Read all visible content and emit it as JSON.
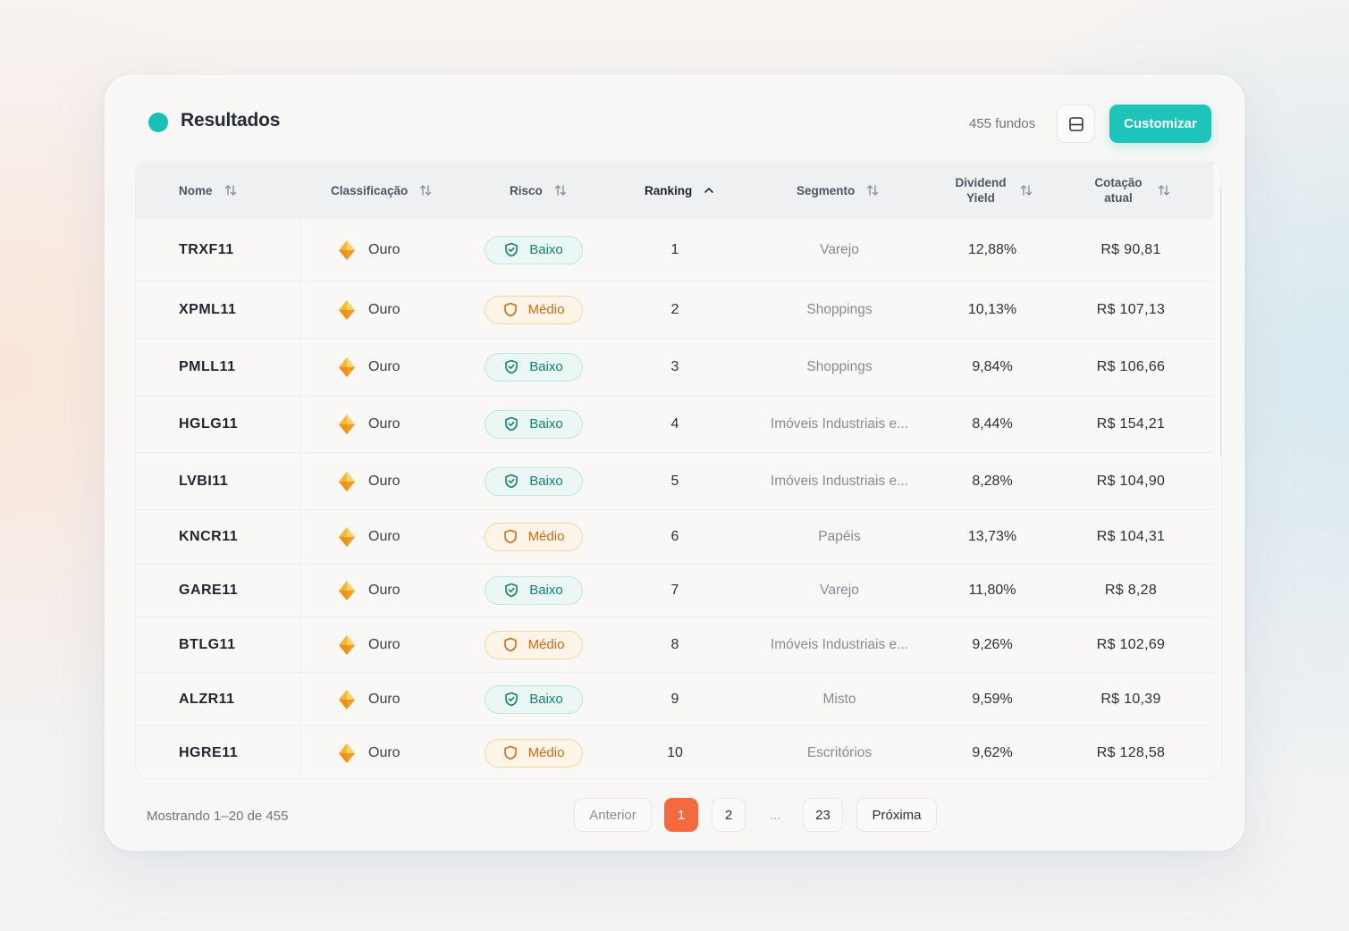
{
  "header": {
    "title": "Resultados",
    "count": "455 fundos",
    "customize_label": "Customizar",
    "layout_icon": "layout-panel-icon",
    "accent_color": "#17c1b4"
  },
  "table": {
    "columns": [
      {
        "label": "Nome",
        "sort": "both"
      },
      {
        "label": "Classificação",
        "sort": "both"
      },
      {
        "label": "Risco",
        "sort": "both"
      },
      {
        "label": "Ranking",
        "sort": "ascending"
      },
      {
        "label": "Segmento",
        "sort": "both"
      },
      {
        "label": "Dividend Yield",
        "sort": "both"
      },
      {
        "label": "Cotação atual",
        "sort": "both"
      }
    ],
    "rows": [
      {
        "name": "TRXF11",
        "class": "Ouro",
        "risk": "Baixo",
        "risk_level": "low",
        "rank": "1",
        "segment": "Varejo",
        "dy": "12,88%",
        "price": "R$ 90,81"
      },
      {
        "name": "XPML11",
        "class": "Ouro",
        "risk": "Médio",
        "risk_level": "mid",
        "rank": "2",
        "segment": "Shoppings",
        "dy": "10,13%",
        "price": "R$ 107,13"
      },
      {
        "name": "PMLL11",
        "class": "Ouro",
        "risk": "Baixo",
        "risk_level": "low",
        "rank": "3",
        "segment": "Shoppings",
        "dy": "9,84%",
        "price": "R$ 106,66"
      },
      {
        "name": "HGLG11",
        "class": "Ouro",
        "risk": "Baixo",
        "risk_level": "low",
        "rank": "4",
        "segment": "Imóveis Industriais e...",
        "dy": "8,44%",
        "price": "R$ 154,21"
      },
      {
        "name": "LVBI11",
        "class": "Ouro",
        "risk": "Baixo",
        "risk_level": "low",
        "rank": "5",
        "segment": "Imóveis Industriais e...",
        "dy": "8,28%",
        "price": "R$ 104,90"
      },
      {
        "name": "KNCR11",
        "class": "Ouro",
        "risk": "Médio",
        "risk_level": "mid",
        "rank": "6",
        "segment": "Papéis",
        "dy": "13,73%",
        "price": "R$ 104,31"
      },
      {
        "name": "GARE11",
        "class": "Ouro",
        "risk": "Baixo",
        "risk_level": "low",
        "rank": "7",
        "segment": "Varejo",
        "dy": "11,80%",
        "price": "R$ 8,28"
      },
      {
        "name": "BTLG11",
        "class": "Ouro",
        "risk": "Médio",
        "risk_level": "mid",
        "rank": "8",
        "segment": "Imóveis Industriais e...",
        "dy": "9,26%",
        "price": "R$ 102,69"
      },
      {
        "name": "ALZR11",
        "class": "Ouro",
        "risk": "Baixo",
        "risk_level": "low",
        "rank": "9",
        "segment": "Misto",
        "dy": "9,59%",
        "price": "R$ 10,39"
      },
      {
        "name": "HGRE11",
        "class": "Ouro",
        "risk": "Médio",
        "risk_level": "mid",
        "rank": "10",
        "segment": "Escritórios",
        "dy": "9,62%",
        "price": "R$ 128,58"
      }
    ],
    "colors": {
      "low": "#16806e",
      "mid": "#cc6b14",
      "gem": "#f5a623"
    }
  },
  "footer": {
    "showing": "Mostrando 1–20 de 455",
    "prev_label": "Anterior",
    "pages": [
      "1",
      "2",
      "...",
      "23"
    ],
    "current_page": "1",
    "next_label": "Próxima",
    "active_color": "#f4693d"
  }
}
